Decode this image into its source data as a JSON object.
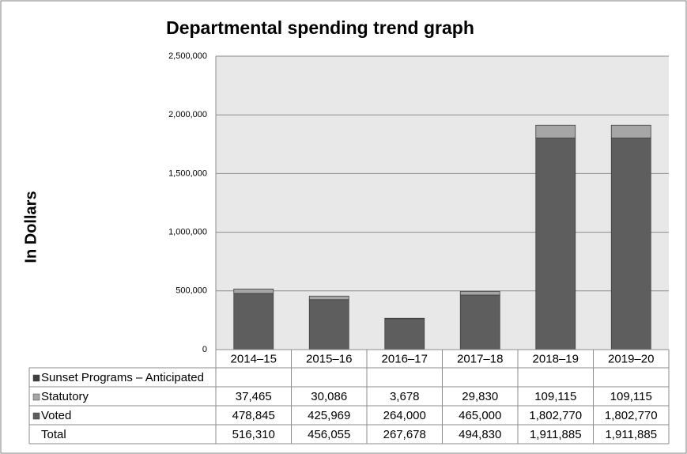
{
  "chart_data": {
    "type": "bar",
    "stacked": true,
    "title": "Departmental spending trend graph",
    "y_label": "In Dollars",
    "categories": [
      "2014–15",
      "2015–16",
      "2016–17",
      "2017–18",
      "2018–19",
      "2019–20"
    ],
    "series": [
      {
        "name": "Sunset Programs – Anticipated",
        "color": "#3f3f3f",
        "values": [
          null,
          null,
          null,
          null,
          null,
          null
        ]
      },
      {
        "name": "Statutory",
        "color": "#a6a6a6",
        "values": [
          37465,
          30086,
          3678,
          29830,
          109115,
          109115
        ],
        "value_labels": [
          "37,465",
          "30,086",
          "3,678",
          "29,830",
          "109,115",
          "109,115"
        ]
      },
      {
        "name": "Voted",
        "color": "#5e5e5e",
        "values": [
          478845,
          425969,
          264000,
          465000,
          1802770,
          1802770
        ],
        "value_labels": [
          "478,845",
          "425,969",
          "264,000",
          "465,000",
          "1,802,770",
          "1,802,770"
        ]
      }
    ],
    "total": {
      "name": "Total",
      "labels": [
        "516,310",
        "456,055",
        "267,678",
        "494,830",
        "1,911,885",
        "1,911,885"
      ]
    },
    "ylim": [
      0,
      2500000
    ],
    "yticks": [
      0,
      {
        "value": 500000,
        "label": "500,000"
      },
      {
        "value": 1000000,
        "label": "1,000,000"
      },
      {
        "value": 1500000,
        "label": "1,500,000"
      },
      {
        "value": 2000000,
        "label": "2,000,000"
      },
      {
        "value": 2500000,
        "label": "2,500,000"
      }
    ],
    "grid": true
  }
}
